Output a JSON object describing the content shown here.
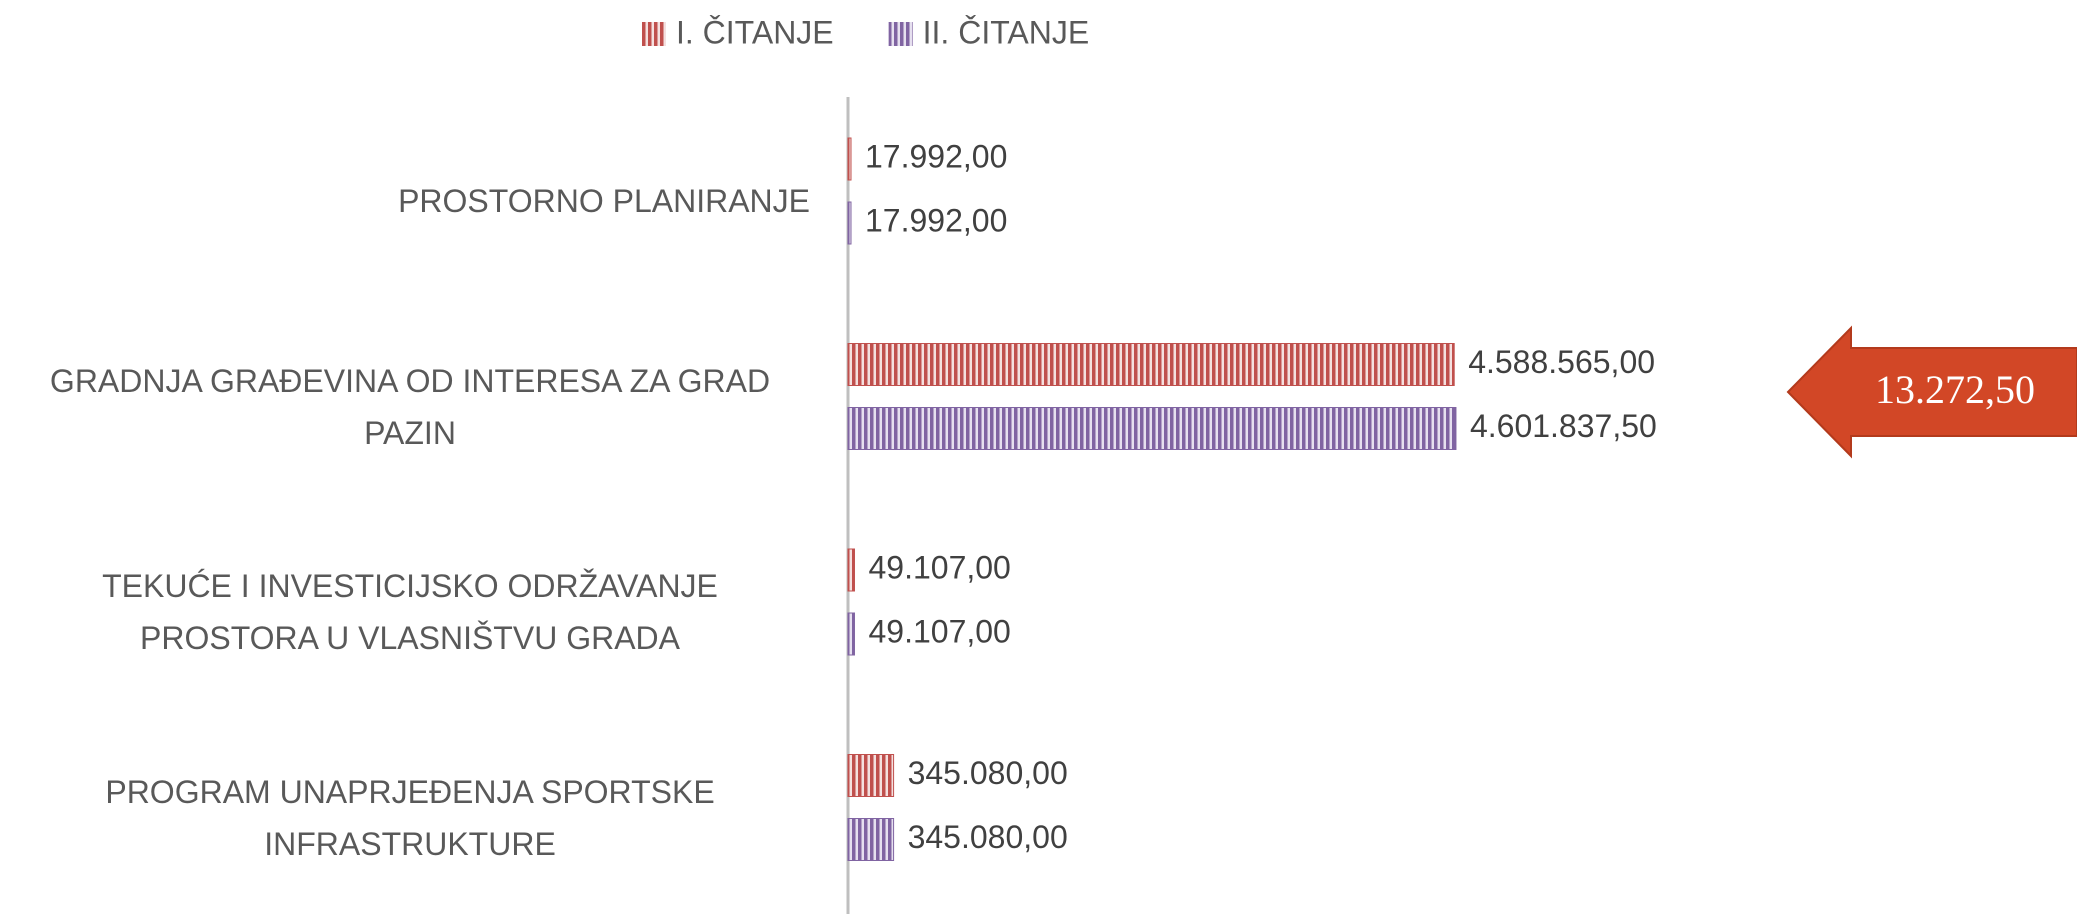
{
  "chart_data": {
    "type": "barh",
    "categories": [
      "PROSTORNO PLANIRANJE",
      "GRADNJA GRAĐEVINA OD INTERESA ZA GRAD PAZIN",
      "TEKUĆE I INVESTICIJSKO ODRŽAVANJE PROSTORA U VLASNIŠTVU GRADA",
      "PROGRAM UNAPRJEĐENJA SPORTSKE INFRASTRUKTURE"
    ],
    "series": [
      {
        "name": "I. ČITANJE",
        "color": "#c0504d",
        "values": [
          17992,
          4588565,
          49107,
          345080
        ],
        "value_labels": [
          "17.992,00",
          "4.588.565,00",
          "49.107,00",
          "345.080,00"
        ]
      },
      {
        "name": "II. ČITANJE",
        "color": "#8064a2",
        "values": [
          17992,
          4601837.5,
          49107,
          345080
        ],
        "value_labels": [
          "17.992,00",
          "4.601.837,50",
          "49.107,00",
          "345.080,00"
        ]
      }
    ],
    "xlim": [
      0,
      9000000
    ],
    "annotation": "13.272,50",
    "legend": "top"
  }
}
